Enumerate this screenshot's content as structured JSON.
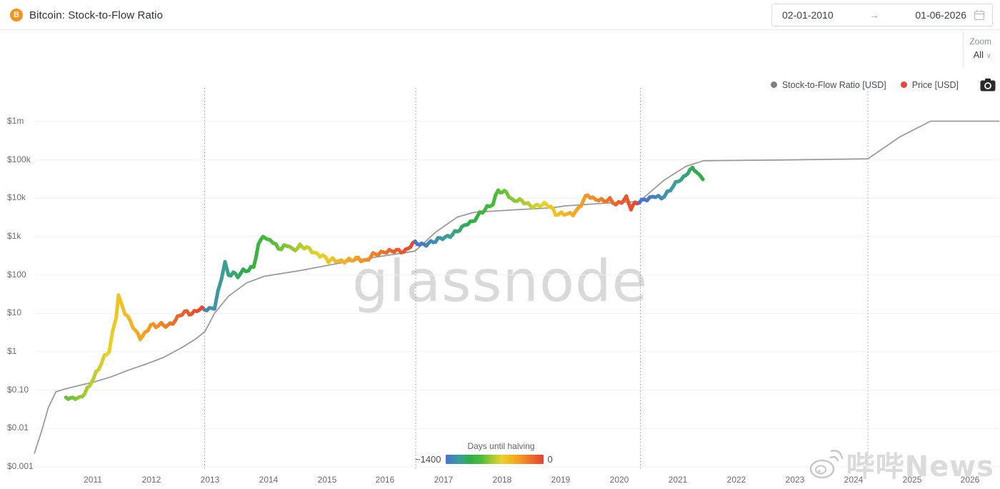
{
  "header": {
    "title": "Bitcoin: Stock-to-Flow Ratio",
    "coin_symbol": "B",
    "date_range": {
      "start": "02-01-2010",
      "arrow": "→",
      "end": "01-06-2026"
    }
  },
  "toolbar": {
    "zoom_label": "Zoom",
    "zoom_value": "All",
    "chevron": "∨"
  },
  "legend": {
    "items": [
      {
        "label": "Stock-to-Flow Ratio [USD]",
        "color": "#7f7f7f"
      },
      {
        "label": "Price [USD]",
        "color": "#e8483c"
      }
    ]
  },
  "watermarks": {
    "center": "glassnode",
    "bottom_right": "哔哔News"
  },
  "colorbar": {
    "title": "Days until halving",
    "left_label": "~1400",
    "right_label": "0",
    "stops": [
      [
        0,
        "#4a72cf"
      ],
      [
        0.14,
        "#3a9e9a"
      ],
      [
        0.25,
        "#2fae45"
      ],
      [
        0.36,
        "#4cbc39"
      ],
      [
        0.48,
        "#a9cc2e"
      ],
      [
        0.57,
        "#e8d22b"
      ],
      [
        0.68,
        "#f5b31f"
      ],
      [
        0.8,
        "#f28a25"
      ],
      [
        0.9,
        "#ec622b"
      ],
      [
        1,
        "#e6452e"
      ]
    ]
  },
  "chart_data": {
    "type": "line",
    "title": "Bitcoin: Stock-to-Flow Ratio",
    "scale": "log",
    "grid": "horizontal",
    "legend_position": "top-right",
    "y_axis": {
      "labels": [
        "$1m",
        "$100k",
        "$10k",
        "$1k",
        "$100",
        "$10",
        "$1",
        "$0.10",
        "$0.01",
        "$0.001"
      ],
      "values": [
        1000000,
        100000,
        10000,
        1000,
        100,
        10,
        1,
        0.1,
        0.01,
        0.001
      ]
    },
    "x_axis": {
      "ticks": [
        2011,
        2012,
        2013,
        2014,
        2015,
        2016,
        2017,
        2018,
        2019,
        2020,
        2021,
        2022,
        2023,
        2024,
        2025,
        2026
      ]
    },
    "halvings": [
      2012.91,
      2016.52,
      2020.36,
      2024.25
    ],
    "halving_window_days": 1400,
    "series": [
      {
        "name": "Stock-to-Flow Ratio [USD]",
        "color": "#9b9b9b",
        "points": [
          [
            2010.0,
            0.0022
          ],
          [
            2010.12,
            0.008
          ],
          [
            2010.24,
            0.035
          ],
          [
            2010.37,
            0.09
          ],
          [
            2010.51,
            0.105
          ],
          [
            2010.76,
            0.13
          ],
          [
            2011.01,
            0.16
          ],
          [
            2011.31,
            0.22
          ],
          [
            2011.61,
            0.33
          ],
          [
            2011.92,
            0.48
          ],
          [
            2012.22,
            0.72
          ],
          [
            2012.53,
            1.3
          ],
          [
            2012.77,
            2.2
          ],
          [
            2012.92,
            3.4
          ],
          [
            2013.08,
            10
          ],
          [
            2013.32,
            28
          ],
          [
            2013.63,
            62
          ],
          [
            2013.93,
            92
          ],
          [
            2014.54,
            130
          ],
          [
            2015.4,
            230
          ],
          [
            2016.01,
            320
          ],
          [
            2016.51,
            420
          ],
          [
            2016.86,
            1300
          ],
          [
            2017.23,
            3200
          ],
          [
            2017.51,
            4300
          ],
          [
            2018.21,
            5000
          ],
          [
            2018.84,
            5600
          ],
          [
            2019.06,
            6300
          ],
          [
            2019.67,
            7300
          ],
          [
            2020.34,
            8200
          ],
          [
            2020.77,
            30000
          ],
          [
            2021.14,
            68000
          ],
          [
            2021.44,
            95000
          ],
          [
            2022.85,
            100000
          ],
          [
            2024.25,
            107000
          ],
          [
            2024.8,
            400000
          ],
          [
            2025.32,
            1020000
          ],
          [
            2026.5,
            1020000
          ]
        ]
      },
      {
        "name": "Price [USD]",
        "color_mode": "days-until-halving",
        "points": [
          [
            2010.54,
            0.07
          ],
          [
            2010.62,
            0.055
          ],
          [
            2010.7,
            0.06
          ],
          [
            2010.78,
            0.062
          ],
          [
            2010.86,
            0.09
          ],
          [
            2010.95,
            0.13
          ],
          [
            2011.01,
            0.19
          ],
          [
            2011.1,
            0.35
          ],
          [
            2011.2,
            0.8
          ],
          [
            2011.28,
            1.1
          ],
          [
            2011.34,
            3.0
          ],
          [
            2011.4,
            8.0
          ],
          [
            2011.44,
            28
          ],
          [
            2011.49,
            17
          ],
          [
            2011.55,
            11
          ],
          [
            2011.64,
            6.5
          ],
          [
            2011.73,
            3.2
          ],
          [
            2011.81,
            2.2
          ],
          [
            2011.89,
            3.0
          ],
          [
            2011.99,
            5.3
          ],
          [
            2012.08,
            4.4
          ],
          [
            2012.17,
            4.9
          ],
          [
            2012.28,
            5.0
          ],
          [
            2012.41,
            6.5
          ],
          [
            2012.53,
            9.5
          ],
          [
            2012.61,
            11.2
          ],
          [
            2012.69,
            10.2
          ],
          [
            2012.78,
            12.0
          ],
          [
            2012.91,
            12.3
          ],
          [
            2012.99,
            13.3
          ],
          [
            2013.08,
            15
          ],
          [
            2013.14,
            35
          ],
          [
            2013.2,
            80
          ],
          [
            2013.26,
            200
          ],
          [
            2013.32,
            100
          ],
          [
            2013.4,
            120
          ],
          [
            2013.48,
            95
          ],
          [
            2013.57,
            120
          ],
          [
            2013.66,
            130
          ],
          [
            2013.75,
            180
          ],
          [
            2013.83,
            600
          ],
          [
            2013.91,
            1050
          ],
          [
            2013.97,
            750
          ],
          [
            2014.03,
            850
          ],
          [
            2014.13,
            620
          ],
          [
            2014.22,
            480
          ],
          [
            2014.32,
            580
          ],
          [
            2014.42,
            450
          ],
          [
            2014.54,
            600
          ],
          [
            2014.66,
            480
          ],
          [
            2014.79,
            380
          ],
          [
            2014.93,
            330
          ],
          [
            2015.03,
            220
          ],
          [
            2015.1,
            240
          ],
          [
            2015.2,
            245
          ],
          [
            2015.3,
            235
          ],
          [
            2015.42,
            230
          ],
          [
            2015.54,
            280
          ],
          [
            2015.67,
            235
          ],
          [
            2015.79,
            320
          ],
          [
            2015.88,
            360
          ],
          [
            2015.98,
            430
          ],
          [
            2016.11,
            400
          ],
          [
            2016.23,
            420
          ],
          [
            2016.35,
            450
          ],
          [
            2016.43,
            580
          ],
          [
            2016.51,
            660
          ],
          [
            2016.62,
            620
          ],
          [
            2016.74,
            700
          ],
          [
            2016.86,
            730
          ],
          [
            2016.98,
            950
          ],
          [
            2017.11,
            1100
          ],
          [
            2017.23,
            1300
          ],
          [
            2017.35,
            1900
          ],
          [
            2017.41,
            2400
          ],
          [
            2017.5,
            2500
          ],
          [
            2017.57,
            3200
          ],
          [
            2017.66,
            4300
          ],
          [
            2017.74,
            6000
          ],
          [
            2017.84,
            7500
          ],
          [
            2017.93,
            16000
          ],
          [
            2018.0,
            13000
          ],
          [
            2018.07,
            15000
          ],
          [
            2018.16,
            9500
          ],
          [
            2018.26,
            8800
          ],
          [
            2018.37,
            7600
          ],
          [
            2018.48,
            6600
          ],
          [
            2018.6,
            6400
          ],
          [
            2018.72,
            6600
          ],
          [
            2018.83,
            6300
          ],
          [
            2018.91,
            4100
          ],
          [
            2019.01,
            3800
          ],
          [
            2019.11,
            3700
          ],
          [
            2019.21,
            4100
          ],
          [
            2019.3,
            5500
          ],
          [
            2019.39,
            8500
          ],
          [
            2019.46,
            11500
          ],
          [
            2019.55,
            10000
          ],
          [
            2019.65,
            9800
          ],
          [
            2019.74,
            8200
          ],
          [
            2019.84,
            8800
          ],
          [
            2019.94,
            7300
          ],
          [
            2020.04,
            8500
          ],
          [
            2020.12,
            9800
          ],
          [
            2020.2,
            5200
          ],
          [
            2020.27,
            7300
          ],
          [
            2020.34,
            8800
          ],
          [
            2020.43,
            9200
          ],
          [
            2020.52,
            9300
          ],
          [
            2020.62,
            11500
          ],
          [
            2020.72,
            10800
          ],
          [
            2020.82,
            13500
          ],
          [
            2020.92,
            19000
          ],
          [
            2021.01,
            30000
          ],
          [
            2021.1,
            36000
          ],
          [
            2021.17,
            48000
          ],
          [
            2021.25,
            55000
          ],
          [
            2021.32,
            50000
          ],
          [
            2021.38,
            37000
          ],
          [
            2021.43,
            31000
          ]
        ]
      }
    ]
  }
}
